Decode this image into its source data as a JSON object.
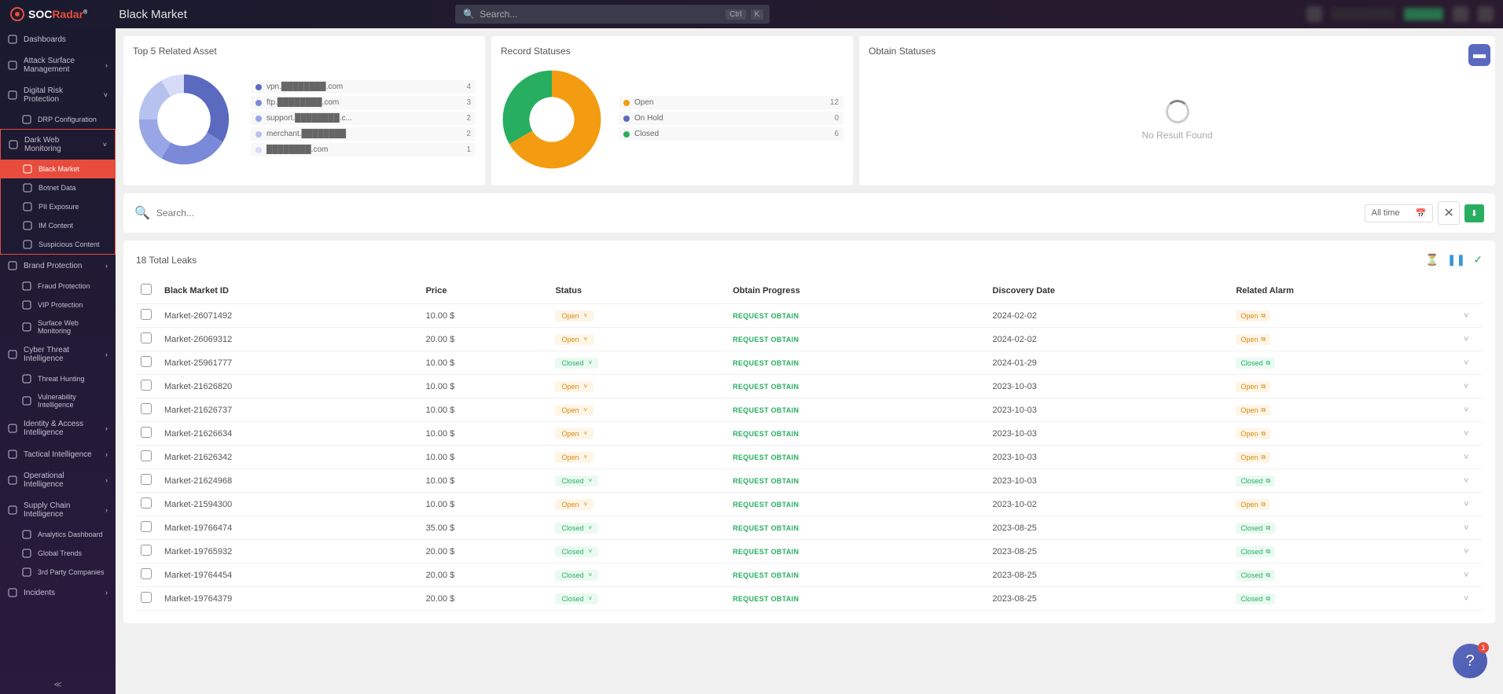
{
  "topbar": {
    "logo": "SOCRadar",
    "page_title": "Black Market",
    "search_placeholder": "Search...",
    "shortcut1": "Ctrl",
    "shortcut2": "K"
  },
  "sidebar": {
    "items": [
      {
        "label": "Dashboards",
        "type": "main",
        "chevron": false
      },
      {
        "label": "Attack Surface Management",
        "type": "main",
        "chevron": true
      },
      {
        "label": "Digital Risk Protection",
        "type": "main",
        "chevron": true,
        "expanded": true
      },
      {
        "label": "DRP Configuration",
        "type": "sub"
      },
      {
        "label": "Dark Web Monitoring",
        "type": "main",
        "chevron": true,
        "highlight_start": true,
        "expanded": true
      },
      {
        "label": "Black Market",
        "type": "sub",
        "active": true
      },
      {
        "label": "Botnet Data",
        "type": "sub"
      },
      {
        "label": "PII Exposure",
        "type": "sub"
      },
      {
        "label": "IM Content",
        "type": "sub"
      },
      {
        "label": "Suspicious Content",
        "type": "sub",
        "highlight_end": true
      },
      {
        "label": "Brand Protection",
        "type": "main",
        "chevron": true
      },
      {
        "label": "Fraud Protection",
        "type": "sub"
      },
      {
        "label": "VIP Protection",
        "type": "sub"
      },
      {
        "label": "Surface Web Monitoring",
        "type": "sub"
      },
      {
        "label": "Cyber Threat Intelligence",
        "type": "main",
        "chevron": true
      },
      {
        "label": "Threat Hunting",
        "type": "sub"
      },
      {
        "label": "Vulnerability Intelligence",
        "type": "sub"
      },
      {
        "label": "Identity & Access Intelligence",
        "type": "main",
        "chevron": true
      },
      {
        "label": "Tactical Intelligence",
        "type": "main",
        "chevron": true
      },
      {
        "label": "Operational Intelligence",
        "type": "main",
        "chevron": true
      },
      {
        "label": "Supply Chain Intelligence",
        "type": "main",
        "chevron": true
      },
      {
        "label": "Analytics Dashboard",
        "type": "sub"
      },
      {
        "label": "Global Trends",
        "type": "sub"
      },
      {
        "label": "3rd Party Companies",
        "type": "sub"
      },
      {
        "label": "Incidents",
        "type": "main",
        "chevron": true
      }
    ]
  },
  "cards": {
    "asset": {
      "title": "Top 5 Related Asset",
      "donut": {
        "type": "donut",
        "values": [
          4,
          3,
          2,
          2,
          1
        ],
        "colors": [
          "#5b6abf",
          "#7a89d8",
          "#99a6e6",
          "#b8c2ef",
          "#d6dcf7"
        ],
        "hole": 0.55,
        "background": "#ffffff"
      },
      "legend": [
        {
          "color": "#5b6abf",
          "label": "vpn.████████.com",
          "value": "4"
        },
        {
          "color": "#7a89d8",
          "label": "ftp.████████.com",
          "value": "3"
        },
        {
          "color": "#99a6e6",
          "label": "support.████████.c...",
          "value": "2"
        },
        {
          "color": "#b8c2ef",
          "label": "merchant.████████",
          "value": "2"
        },
        {
          "color": "#d6dcf7",
          "label": "████████.com",
          "value": "1"
        }
      ]
    },
    "record": {
      "title": "Record Statuses",
      "donut": {
        "type": "donut",
        "values": [
          12,
          0,
          6
        ],
        "colors": [
          "#f39c12",
          "#5b6abf",
          "#27ae60"
        ],
        "hole": 0.55,
        "background": "#ffffff",
        "stroke_width": 26
      },
      "legend": [
        {
          "color": "#f39c12",
          "label": "Open",
          "value": "12"
        },
        {
          "color": "#5b6abf",
          "label": "On Hold",
          "value": "0"
        },
        {
          "color": "#27ae60",
          "label": "Closed",
          "value": "6"
        }
      ]
    },
    "obtain": {
      "title": "Obtain Statuses",
      "empty_text": "No Result Found"
    }
  },
  "filter": {
    "search_placeholder": "Search...",
    "date_label": "All time"
  },
  "table": {
    "total_leaks": "18 Total Leaks",
    "columns": [
      "Black Market ID",
      "Price",
      "Status",
      "Obtain Progress",
      "Discovery Date",
      "Related Alarm"
    ],
    "request_obtain_label": "REQUEST OBTAIN",
    "rows": [
      {
        "id": "Market-26071492",
        "price": "10.00 $",
        "status": "Open",
        "date": "2024-02-02",
        "alarm": "Open"
      },
      {
        "id": "Market-26069312",
        "price": "20.00 $",
        "status": "Open",
        "date": "2024-02-02",
        "alarm": "Open"
      },
      {
        "id": "Market-25961777",
        "price": "10.00 $",
        "status": "Closed",
        "date": "2024-01-29",
        "alarm": "Closed"
      },
      {
        "id": "Market-21626820",
        "price": "10.00 $",
        "status": "Open",
        "date": "2023-10-03",
        "alarm": "Open"
      },
      {
        "id": "Market-21626737",
        "price": "10.00 $",
        "status": "Open",
        "date": "2023-10-03",
        "alarm": "Open"
      },
      {
        "id": "Market-21626634",
        "price": "10.00 $",
        "status": "Open",
        "date": "2023-10-03",
        "alarm": "Open"
      },
      {
        "id": "Market-21626342",
        "price": "10.00 $",
        "status": "Open",
        "date": "2023-10-03",
        "alarm": "Open"
      },
      {
        "id": "Market-21624968",
        "price": "10.00 $",
        "status": "Closed",
        "date": "2023-10-03",
        "alarm": "Closed"
      },
      {
        "id": "Market-21594300",
        "price": "10.00 $",
        "status": "Open",
        "date": "2023-10-02",
        "alarm": "Open"
      },
      {
        "id": "Market-19766474",
        "price": "35.00 $",
        "status": "Closed",
        "date": "2023-08-25",
        "alarm": "Closed"
      },
      {
        "id": "Market-19765932",
        "price": "20.00 $",
        "status": "Closed",
        "date": "2023-08-25",
        "alarm": "Closed"
      },
      {
        "id": "Market-19764454",
        "price": "20.00 $",
        "status": "Closed",
        "date": "2023-08-25",
        "alarm": "Closed"
      },
      {
        "id": "Market-19764379",
        "price": "20.00 $",
        "status": "Closed",
        "date": "2023-08-25",
        "alarm": "Closed"
      }
    ]
  },
  "help_badge": "1"
}
